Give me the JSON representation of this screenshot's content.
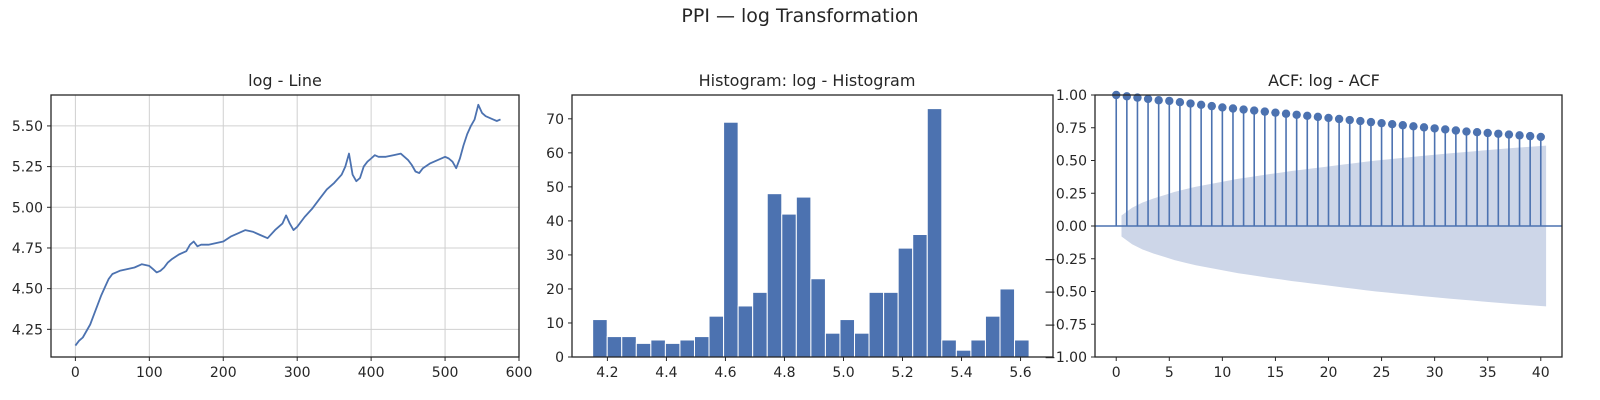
{
  "figure": {
    "title": "PPI — log Transformation"
  },
  "colors": {
    "line": "#4c72b0",
    "bar": "#4c72b0",
    "band": "#cdd6e8",
    "grid": "#d0d0d0",
    "axis": "#262626"
  },
  "chart_data": [
    {
      "type": "line",
      "title": "log - Line",
      "grid": true,
      "xlim": [
        -33,
        600
      ],
      "ylim": [
        4.08,
        5.69
      ],
      "xticks": [
        0,
        100,
        200,
        300,
        400,
        500,
        600
      ],
      "yticks": [
        4.25,
        4.5,
        4.75,
        5.0,
        5.25,
        5.5
      ],
      "ytick_labels": [
        "4.25",
        "4.50",
        "4.75",
        "5.00",
        "5.25",
        "5.50"
      ],
      "series": [
        {
          "x": [
            0,
            5,
            10,
            15,
            20,
            25,
            30,
            35,
            40,
            45,
            50,
            55,
            60,
            70,
            80,
            90,
            100,
            105,
            110,
            115,
            120,
            125,
            130,
            140,
            150,
            155,
            160,
            165,
            170,
            180,
            190,
            200,
            210,
            220,
            230,
            240,
            250,
            260,
            270,
            280,
            285,
            290,
            295,
            300,
            310,
            320,
            330,
            340,
            350,
            360,
            365,
            370,
            375,
            380,
            385,
            390,
            395,
            400,
            405,
            410,
            420,
            430,
            440,
            450,
            455,
            460,
            465,
            470,
            480,
            490,
            500,
            505,
            510,
            515,
            520,
            525,
            530,
            535,
            540,
            545,
            550,
            555,
            560,
            565,
            570,
            575
          ],
          "y": [
            4.15,
            4.18,
            4.2,
            4.24,
            4.28,
            4.34,
            4.4,
            4.46,
            4.51,
            4.56,
            4.59,
            4.6,
            4.61,
            4.62,
            4.63,
            4.65,
            4.64,
            4.62,
            4.6,
            4.61,
            4.63,
            4.66,
            4.68,
            4.71,
            4.73,
            4.77,
            4.79,
            4.76,
            4.77,
            4.77,
            4.78,
            4.79,
            4.82,
            4.84,
            4.86,
            4.85,
            4.83,
            4.81,
            4.86,
            4.9,
            4.95,
            4.9,
            4.86,
            4.88,
            4.94,
            4.99,
            5.05,
            5.11,
            5.15,
            5.2,
            5.25,
            5.33,
            5.2,
            5.16,
            5.18,
            5.25,
            5.28,
            5.3,
            5.32,
            5.31,
            5.31,
            5.32,
            5.33,
            5.29,
            5.26,
            5.22,
            5.21,
            5.24,
            5.27,
            5.29,
            5.31,
            5.3,
            5.28,
            5.24,
            5.3,
            5.38,
            5.45,
            5.5,
            5.54,
            5.63,
            5.58,
            5.56,
            5.55,
            5.54,
            5.53,
            5.54
          ]
        }
      ]
    },
    {
      "type": "bar",
      "title": "Histogram: log - Histogram",
      "xlim": [
        4.08,
        5.71
      ],
      "ylim": [
        0,
        77
      ],
      "xticks": [
        4.2,
        4.4,
        4.6,
        4.8,
        5.0,
        5.2,
        5.4,
        5.6
      ],
      "xtick_labels": [
        "4.2",
        "4.4",
        "4.6",
        "4.8",
        "5.0",
        "5.2",
        "5.4",
        "5.6"
      ],
      "yticks": [
        0,
        10,
        20,
        30,
        40,
        50,
        60,
        70
      ],
      "bin_start": 4.15,
      "bin_width": 0.0493,
      "values": [
        11,
        6,
        6,
        4,
        5,
        4,
        5,
        6,
        12,
        69,
        15,
        19,
        48,
        42,
        47,
        23,
        7,
        11,
        7,
        19,
        19,
        32,
        36,
        73,
        5,
        2,
        5,
        12,
        20,
        5
      ]
    },
    {
      "type": "stem",
      "title": "ACF: log - ACF",
      "xlim": [
        -2,
        42
      ],
      "ylim": [
        -1.0,
        1.0
      ],
      "xticks": [
        0,
        5,
        10,
        15,
        20,
        25,
        30,
        35,
        40
      ],
      "yticks": [
        -1.0,
        -0.75,
        -0.5,
        -0.25,
        0.0,
        0.25,
        0.5,
        0.75,
        1.0
      ],
      "ytick_labels": [
        "−1.00",
        "−0.75",
        "−0.50",
        "−0.25",
        "0.00",
        "0.25",
        "0.50",
        "0.75",
        "1.00"
      ],
      "lags": [
        0,
        1,
        2,
        3,
        4,
        5,
        6,
        7,
        8,
        9,
        10,
        11,
        12,
        13,
        14,
        15,
        16,
        17,
        18,
        19,
        20,
        21,
        22,
        23,
        24,
        25,
        26,
        27,
        28,
        29,
        30,
        31,
        32,
        33,
        34,
        35,
        36,
        37,
        38,
        39,
        40
      ],
      "acf": [
        1.0,
        0.99,
        0.98,
        0.97,
        0.96,
        0.955,
        0.945,
        0.935,
        0.925,
        0.915,
        0.905,
        0.897,
        0.889,
        0.881,
        0.873,
        0.865,
        0.857,
        0.849,
        0.841,
        0.833,
        0.825,
        0.817,
        0.809,
        0.801,
        0.793,
        0.785,
        0.777,
        0.769,
        0.761,
        0.753,
        0.745,
        0.737,
        0.729,
        0.721,
        0.716,
        0.71,
        0.704,
        0.698,
        0.692,
        0.686,
        0.68
      ],
      "conf_upper": [
        0.08,
        0.14,
        0.18,
        0.21,
        0.235,
        0.26,
        0.28,
        0.3,
        0.315,
        0.33,
        0.345,
        0.36,
        0.372,
        0.385,
        0.397,
        0.408,
        0.42,
        0.43,
        0.44,
        0.45,
        0.46,
        0.47,
        0.48,
        0.49,
        0.5,
        0.508,
        0.516,
        0.524,
        0.532,
        0.54,
        0.548,
        0.555,
        0.562,
        0.569,
        0.576,
        0.583,
        0.59,
        0.596,
        0.602,
        0.608,
        0.614
      ]
    }
  ]
}
